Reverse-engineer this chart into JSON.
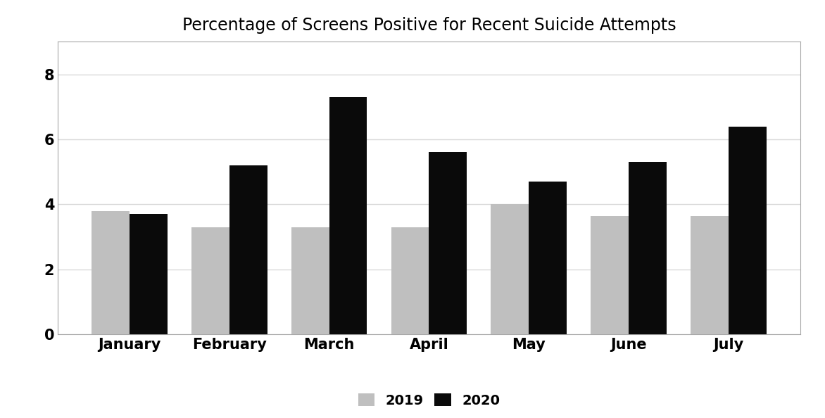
{
  "title": "Percentage of Screens Positive for Recent Suicide Attempts",
  "categories": [
    "January",
    "February",
    "March",
    "April",
    "May",
    "June",
    "July"
  ],
  "values_2019": [
    3.8,
    3.3,
    3.3,
    3.3,
    4.0,
    3.65,
    3.65
  ],
  "values_2020": [
    3.7,
    5.2,
    7.3,
    5.6,
    4.7,
    5.3,
    6.4
  ],
  "color_2019": "#bfbfbf",
  "color_2020": "#0a0a0a",
  "ylim": [
    0,
    9
  ],
  "yticks": [
    0,
    2,
    4,
    6,
    8
  ],
  "legend_labels": [
    "2019",
    "2020"
  ],
  "bar_width": 0.38,
  "background_color": "#ffffff",
  "grid_color": "#d9d9d9",
  "title_fontsize": 17,
  "tick_fontsize": 15,
  "legend_fontsize": 14
}
